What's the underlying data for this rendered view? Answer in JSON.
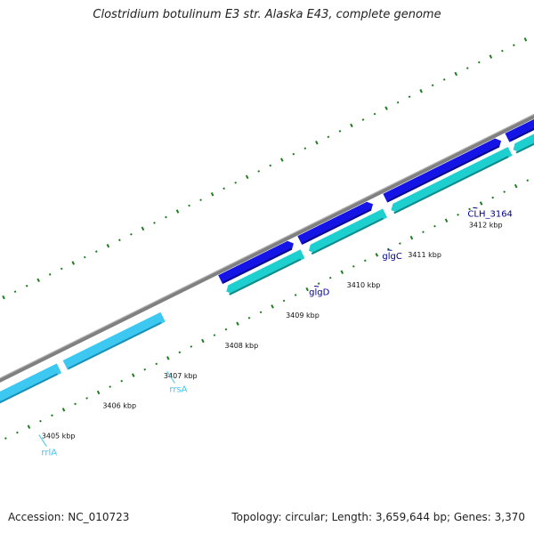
{
  "title": "Clostridium botulinum E3 str. Alaska E43, complete genome",
  "footer": {
    "accession": "Accession: NC_010723",
    "summary": "Topology: circular; Length: 3,659,644 bp; Genes: 3,370"
  },
  "colors": {
    "backbone": "#808080",
    "forward_gene": "#1414e6",
    "forward_gene_edge": "#0a0a8c",
    "reverse_gene": "#1ecfcf",
    "reverse_gene_edge": "#0e8a8a",
    "rrna": "#3cc8f0",
    "rrna_edge": "#1a8fb8",
    "gc_dots": "#1e7d1e",
    "gene_label": "#00008b",
    "rrna_label": "#3cc8f0"
  },
  "tick_labels": [
    {
      "kbp": 3405,
      "text": "3405 kbp"
    },
    {
      "kbp": 3406,
      "text": "3406 kbp"
    },
    {
      "kbp": 3407,
      "text": "3407 kbp"
    },
    {
      "kbp": 3408,
      "text": "3408 kbp"
    },
    {
      "kbp": 3409,
      "text": "3409 kbp"
    },
    {
      "kbp": 3410,
      "text": "3410 kbp"
    },
    {
      "kbp": 3411,
      "text": "3411 kbp"
    },
    {
      "kbp": 3412,
      "text": "3412 kbp"
    }
  ],
  "features": [
    {
      "name": "rrlA",
      "type": "rRNA",
      "start_kbp": 3403.5,
      "end_kbp": 3405.6
    },
    {
      "name": "rrsA",
      "type": "rRNA",
      "start_kbp": 3405.7,
      "end_kbp": 3407.3
    },
    {
      "name": "",
      "type": "CDS",
      "strand": "+",
      "start_kbp": 3408.3,
      "end_kbp": 3409.5
    },
    {
      "name": "",
      "type": "CDS",
      "strand": "-",
      "start_kbp": 3408.3,
      "end_kbp": 3409.55
    },
    {
      "name": "",
      "type": "CDS",
      "strand": "+",
      "start_kbp": 3409.6,
      "end_kbp": 3410.8
    },
    {
      "name": "",
      "type": "CDS",
      "strand": "-",
      "start_kbp": 3409.65,
      "end_kbp": 3410.9
    },
    {
      "name": "",
      "type": "CDS",
      "strand": "+",
      "start_kbp": 3411.0,
      "end_kbp": 3412.9
    },
    {
      "name": "",
      "type": "CDS",
      "strand": "-",
      "start_kbp": 3411.0,
      "end_kbp": 3412.95
    },
    {
      "name": "",
      "type": "CDS",
      "strand": "+",
      "start_kbp": 3413.0,
      "end_kbp": 3414.0
    },
    {
      "name": "",
      "type": "CDS",
      "strand": "-",
      "start_kbp": 3413.0,
      "end_kbp": 3414.0
    }
  ],
  "gene_labels": [
    {
      "text": "rrlA",
      "kbp": 3404.9,
      "kind": "rRNA"
    },
    {
      "text": "rrsA",
      "kbp": 3407.0,
      "kind": "rRNA"
    },
    {
      "text": "glgD",
      "kbp": 3409.55,
      "kind": "CDS"
    },
    {
      "text": "glgC",
      "kbp": 3410.75,
      "kind": "CDS"
    },
    {
      "text": "CLH_3164",
      "kbp": 3412.15,
      "kind": "CDS"
    }
  ]
}
